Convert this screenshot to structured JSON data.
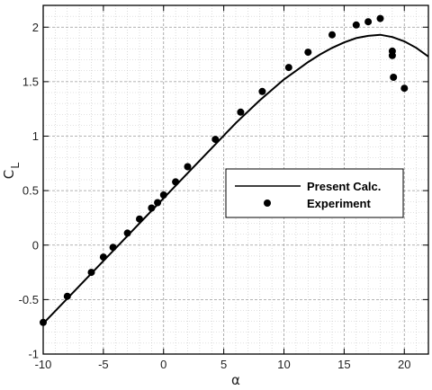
{
  "chart_data": {
    "type": "line",
    "title": "",
    "xlabel": "α",
    "ylabel": "C",
    "ylabel_sub": "L",
    "xlim": [
      -10,
      22
    ],
    "ylim": [
      -1,
      2.2
    ],
    "x_ticks": [
      "-10",
      "-5",
      "0",
      "5",
      "10",
      "15",
      "20"
    ],
    "y_ticks": [
      "-1",
      "-0.5",
      "0",
      "0.5",
      "1",
      "1.5",
      "2"
    ],
    "grid": true,
    "legend_position": "center-right",
    "series": [
      {
        "name": "Present Calc.",
        "style": "line",
        "color": "#000000",
        "x": [
          -10,
          -8,
          -6,
          -4,
          -2,
          0,
          2,
          4,
          6,
          8,
          10,
          11,
          12,
          13,
          14,
          15,
          16,
          17,
          18,
          19,
          20,
          21,
          22
        ],
        "y": [
          -0.72,
          -0.49,
          -0.26,
          -0.03,
          0.2,
          0.43,
          0.66,
          0.89,
          1.12,
          1.33,
          1.52,
          1.6,
          1.68,
          1.75,
          1.81,
          1.86,
          1.9,
          1.92,
          1.93,
          1.91,
          1.87,
          1.81,
          1.73
        ]
      },
      {
        "name": "Experiment",
        "style": "marker",
        "color": "#000000",
        "x": [
          -10,
          -8,
          -6,
          -5,
          -4.2,
          -3,
          -2,
          -1,
          -0.5,
          0,
          1,
          2,
          4.3,
          6.4,
          8.2,
          10.4,
          12,
          14,
          16,
          17,
          18,
          19,
          19,
          19.1,
          20
        ],
        "y": [
          -0.71,
          -0.47,
          -0.25,
          -0.11,
          -0.02,
          0.11,
          0.24,
          0.34,
          0.39,
          0.46,
          0.58,
          0.72,
          0.97,
          1.22,
          1.41,
          1.63,
          1.77,
          1.93,
          2.02,
          2.05,
          2.08,
          1.78,
          1.74,
          1.54,
          1.44
        ]
      }
    ]
  }
}
